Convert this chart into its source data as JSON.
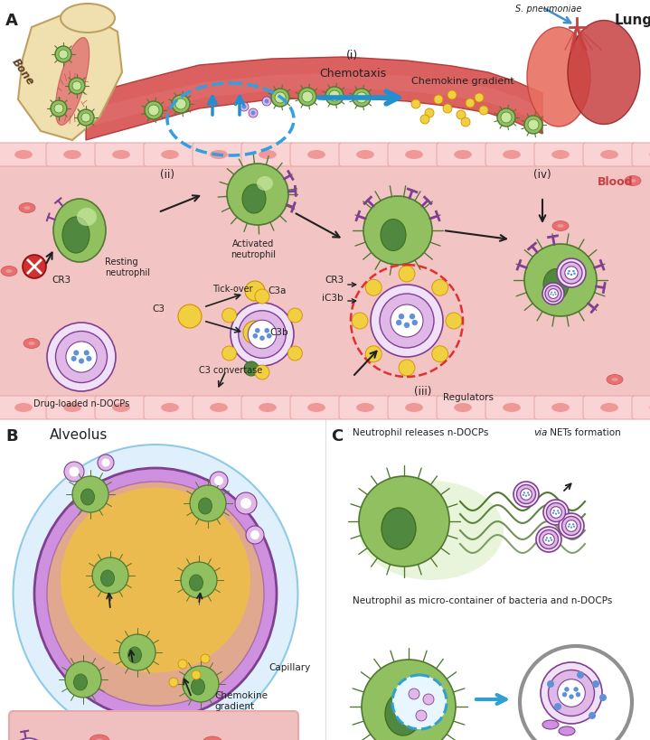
{
  "panel_A_label": "A",
  "panel_B_label": "B",
  "panel_C_label": "C",
  "labels": {
    "bone": "Bone",
    "lung": "Lung",
    "s_pneumoniae": "S. pneumoniae",
    "chemotaxis": "(i)\nChemotaxis",
    "chemokine_gradient": "Chemokine gradient",
    "blood": "Blood",
    "resting_neutrophil": "Resting\nneutrophil",
    "activated_neutrophil": "Activated\nneutrophil",
    "drug_loaded": "Drug-loaded n-DOCPs",
    "c3": "C3",
    "c3a": "C3a",
    "c3b": "C3b",
    "c3_convertase": "C3 convertase",
    "tick_over": "Tick-over",
    "cr3": "CR3",
    "ic3b": "iC3b",
    "regulators": "Regulators",
    "step_ii": "(ii)",
    "step_iii": "(iii)",
    "step_iv": "(iv)",
    "alveolus": "Alveolus",
    "capillary": "Capillary",
    "chemokine_gradient_b": "Chemokine\ngradient",
    "nets_label": "Neutrophil releases n-DOCPs ",
    "nets_label_italic": "via",
    "nets_label2": " NETs formation",
    "container_label": "Neutrophil as micro-container of bacteria and n-DOCPs"
  },
  "colors": {
    "white": "#ffffff",
    "light_pink_bg": "#fbe8e8",
    "blood_pink": "#f2c4c4",
    "blood_vessel_pink": "#e8a8a8",
    "cell_border_pink": "#f0c0c0",
    "cell_fill_pink": "#fad4d4",
    "rbc_fill": "#e87070",
    "rbc_edge": "#cc5050",
    "green_cell": "#90c060",
    "green_cell_edge": "#507830",
    "green_dark": "#407020",
    "green_inner": "#c8e8a0",
    "green_nucleus": "#508840",
    "purple_nano": "#c080d0",
    "purple_nano_edge": "#804090",
    "purple_light": "#e0b8e8",
    "purple_inner": "#f0e0f8",
    "blue_dot": "#6090d8",
    "yellow": "#f0d040",
    "yellow_edge": "#d09000",
    "red_x": "#d03030",
    "blue_arrow": "#4090d0",
    "black": "#202020",
    "bone_fill": "#f0e0b0",
    "bone_edge": "#c0a060",
    "bone_marrow": "#e07070",
    "lung_red": "#c84040",
    "lung_light": "#e87060",
    "alv_purple": "#d090e0",
    "alv_gold": "#f0c040",
    "alv_blue": "#c0e0f8",
    "pink_rbc": "#e89090",
    "gray": "#909090",
    "text_dark": "#222222",
    "dashed_red": "#e03030",
    "dashed_blue": "#30a0d0"
  }
}
